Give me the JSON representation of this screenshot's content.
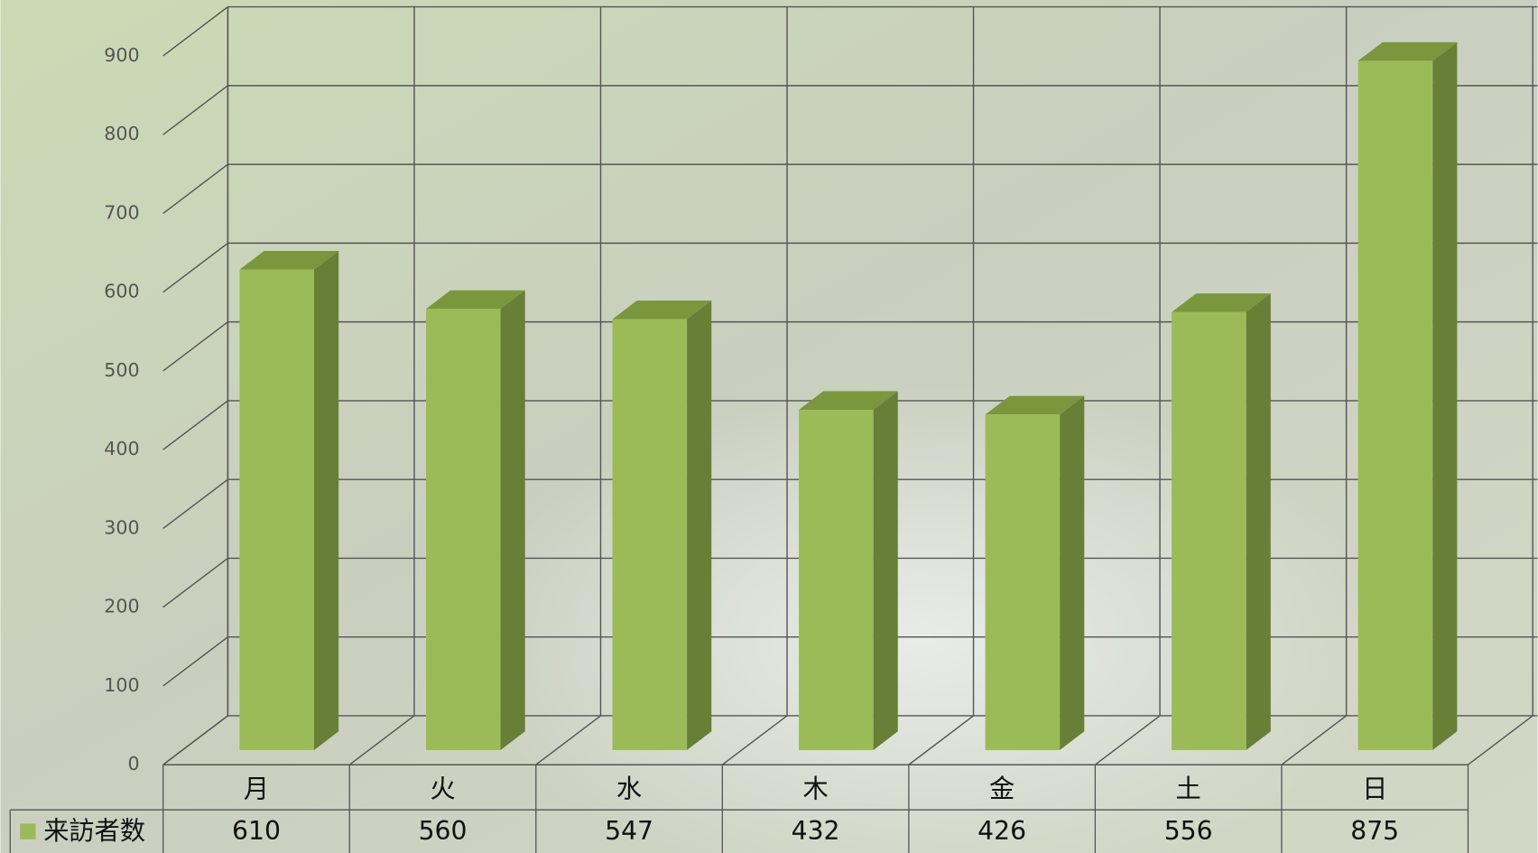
{
  "chart_data": {
    "type": "bar3d",
    "categories": [
      "月",
      "火",
      "水",
      "木",
      "金",
      "土",
      "日"
    ],
    "series": [
      {
        "name": "来訪者数",
        "color": "#9bbb59",
        "values": [
          610,
          560,
          547,
          432,
          426,
          556,
          875
        ]
      }
    ],
    "ylim": [
      0,
      900
    ],
    "yticks": [
      0,
      100,
      200,
      300,
      400,
      500,
      600,
      700,
      800,
      900
    ],
    "grid": true
  }
}
